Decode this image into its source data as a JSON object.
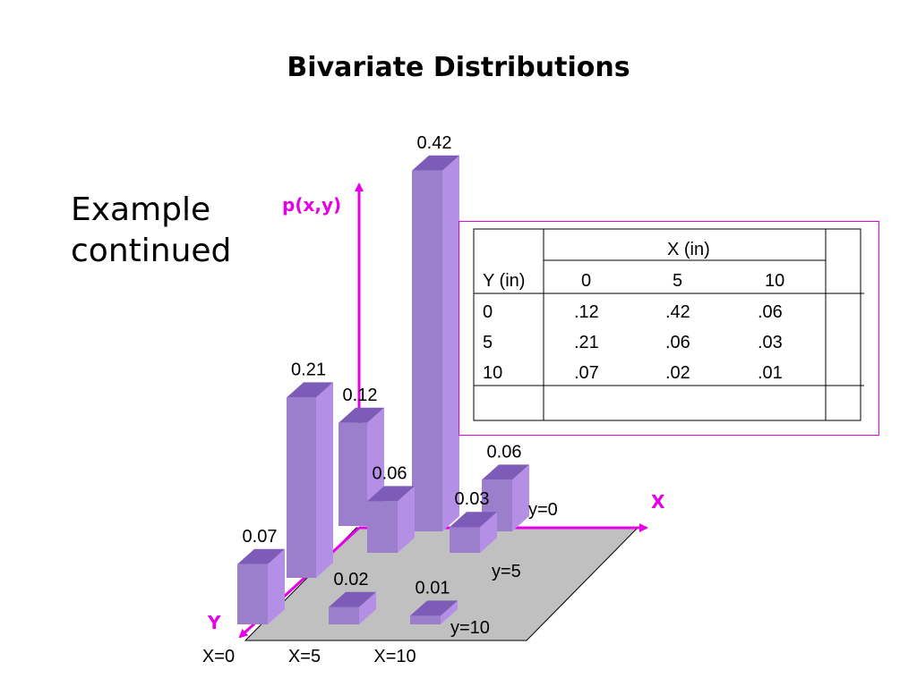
{
  "title": "Bivariate Distributions",
  "subtitle": [
    "Example",
    "continued"
  ],
  "colors": {
    "bar_front": "#9b7fcc",
    "bar_side": "#b58fe6",
    "bar_top": "#7d5cb8",
    "floor": "#c0c0c0",
    "axis": "#e600e6",
    "border": "#e600e6"
  },
  "chart_data": {
    "type": "bar3d",
    "z_label": "p(x,y)",
    "x_axis_label": "X",
    "y_axis_label": "Y",
    "x_categories": [
      "X=0",
      "X=5",
      "X=10"
    ],
    "y_categories": [
      "y=0",
      "y=5",
      "y=10"
    ],
    "values": [
      {
        "x": 0,
        "y": 0,
        "p": 0.12,
        "label": "0.12"
      },
      {
        "x": 5,
        "y": 0,
        "p": 0.42,
        "label": "0.42"
      },
      {
        "x": 10,
        "y": 0,
        "p": 0.06,
        "label": "0.06"
      },
      {
        "x": 0,
        "y": 5,
        "p": 0.21,
        "label": "0.21"
      },
      {
        "x": 5,
        "y": 5,
        "p": 0.06,
        "label": "0.06"
      },
      {
        "x": 10,
        "y": 5,
        "p": 0.03,
        "label": "0.03"
      },
      {
        "x": 0,
        "y": 10,
        "p": 0.07,
        "label": "0.07"
      },
      {
        "x": 5,
        "y": 10,
        "p": 0.02,
        "label": "0.02"
      },
      {
        "x": 10,
        "y": 10,
        "p": 0.01,
        "label": "0.01"
      }
    ]
  },
  "table": {
    "col_header": "X (in)",
    "row_header": "Y (in)",
    "x_values": [
      "0",
      "5",
      "10"
    ],
    "rows": [
      {
        "y": "0",
        "cells": [
          ".12",
          ".42",
          ".06"
        ]
      },
      {
        "y": "5",
        "cells": [
          ".21",
          ".06",
          ".03"
        ]
      },
      {
        "y": "10",
        "cells": [
          ".07",
          ".02",
          ".01"
        ]
      }
    ]
  }
}
